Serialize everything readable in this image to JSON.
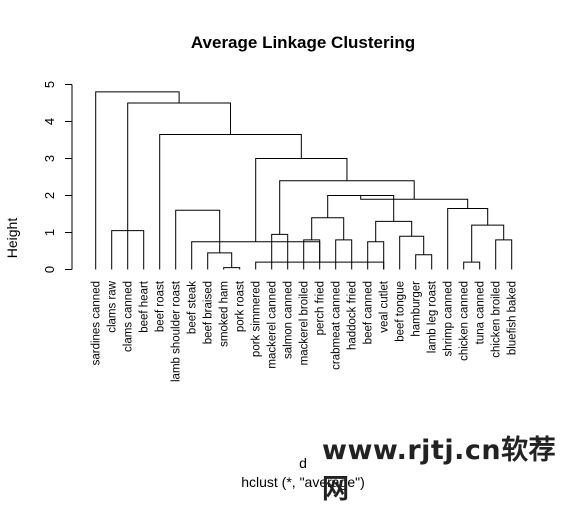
{
  "chart_data": {
    "type": "dendrogram",
    "title": "Average Linkage Clustering",
    "xlabel": "d",
    "sublabel": "hclust (*, \"average\")",
    "ylabel": "Height",
    "ylim": [
      0,
      5
    ],
    "y_ticks": [
      "0",
      "1",
      "2",
      "3",
      "4",
      "5"
    ],
    "leaves": [
      "sardines canned",
      "clams raw",
      "clams canned",
      "beef heart",
      "beef roast",
      "lamb shoulder roast",
      "beef steak",
      "beef braised",
      "smoked ham",
      "pork roast",
      "pork simmered",
      "mackerel canned",
      "salmon canned",
      "mackerel broiled",
      "perch fried",
      "crabmeat canned",
      "haddock fried",
      "beef canned",
      "veal cutlet",
      "beef tongue",
      "hamburger",
      "lamb leg roast",
      "shrimp canned",
      "chicken canned",
      "tuna canned",
      "chicken broiled",
      "bluefish baked"
    ],
    "merges": [
      {
        "left": 8,
        "right": 9,
        "height": 0.05
      },
      {
        "left": 23,
        "right": 24,
        "height": 0.2
      },
      {
        "left": 20,
        "right": 21,
        "height": 0.4
      },
      {
        "left": 10,
        "right": 18,
        "height": 0.2
      },
      {
        "left": 7,
        "right": 27,
        "height": 0.45
      },
      {
        "left": 6,
        "right": 30,
        "height": 0.75
      },
      {
        "left": 5,
        "right": 31,
        "height": 1.6
      },
      {
        "left": 25,
        "right": 26,
        "height": 0.8
      },
      {
        "left": 28,
        "right": 34,
        "height": 1.2
      },
      {
        "left": 22,
        "right": 35,
        "height": 1.65
      },
      {
        "left": 15,
        "right": 16,
        "height": 0.8
      },
      {
        "left": 13,
        "right": 14,
        "height": 0.8
      },
      {
        "left": 37,
        "right": 38,
        "height": 1.4
      },
      {
        "left": 17,
        "right": 18,
        "height": 0.75
      },
      {
        "left": 19,
        "right": 29,
        "height": 0.9
      },
      {
        "left": 40,
        "right": 41,
        "height": 1.3
      },
      {
        "left": 39,
        "right": 42,
        "height": 2.0
      },
      {
        "left": 43,
        "right": 36,
        "height": 1.9
      },
      {
        "left": 11,
        "right": 12,
        "height": 0.95
      },
      {
        "left": 45,
        "right": 44,
        "height": 2.4
      },
      {
        "left": 32,
        "right": 46,
        "height": 3.0
      },
      {
        "left": 4,
        "right": 47,
        "height": 3.65
      },
      {
        "left": 2,
        "right": 48,
        "height": 4.5
      },
      {
        "left": 1,
        "right": 3,
        "height": 1.05
      },
      {
        "left": 0,
        "right": 49,
        "height": 4.8
      }
    ]
  },
  "watermark": "www.rjtj.cn软荐网"
}
